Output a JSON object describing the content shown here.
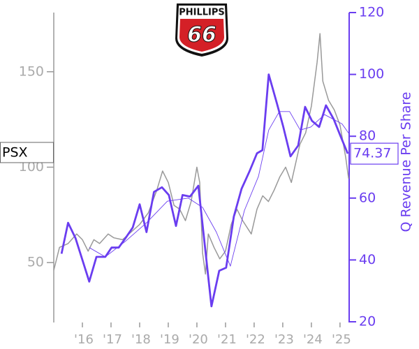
{
  "chart_data": {
    "type": "line",
    "ticker": "PSX",
    "logo": {
      "top": "PHILLIPS",
      "bottom": "66"
    },
    "y2label": "Q Revenue Per Share",
    "xlim": [
      2015,
      2025.32
    ],
    "xticks": [
      {
        "value": 2016,
        "label": "'16"
      },
      {
        "value": 2017,
        "label": "'17"
      },
      {
        "value": 2018,
        "label": "'18"
      },
      {
        "value": 2019,
        "label": "'19"
      },
      {
        "value": 2020,
        "label": "'20"
      },
      {
        "value": 2021,
        "label": "'21"
      },
      {
        "value": 2022,
        "label": "'22"
      },
      {
        "value": 2023,
        "label": "'23"
      },
      {
        "value": 2024,
        "label": "'24"
      },
      {
        "value": 2025,
        "label": "'25"
      }
    ],
    "ylim": [
      19,
      181
    ],
    "yticks": [
      50,
      100,
      150
    ],
    "y2lim": [
      20,
      120
    ],
    "y2ticks": [
      20,
      40,
      60,
      80,
      100,
      120
    ],
    "y2color": "#6a3df0",
    "axiscolor": "#999999",
    "series": [
      {
        "color": "#999999",
        "axis": "y",
        "x": [
          2015.0,
          2015.2,
          2015.5,
          2015.8,
          2016.0,
          2016.2,
          2016.4,
          2016.6,
          2016.9,
          2017.1,
          2017.4,
          2017.7,
          2018.0,
          2018.3,
          2018.6,
          2018.8,
          2019.0,
          2019.2,
          2019.4,
          2019.6,
          2019.8,
          2020.0,
          2020.1,
          2020.2,
          2020.3,
          2020.4,
          2020.6,
          2020.8,
          2021.0,
          2021.2,
          2021.4,
          2021.6,
          2021.9,
          2022.1,
          2022.3,
          2022.5,
          2022.7,
          2022.9,
          2023.1,
          2023.3,
          2023.6,
          2023.8,
          2024.0,
          2024.2,
          2024.3,
          2024.4,
          2024.6,
          2024.8,
          2025.0,
          2025.2,
          2025.3
        ],
        "values": [
          46,
          58,
          60,
          65,
          62,
          56,
          62,
          60,
          65,
          63,
          62,
          66,
          70,
          76,
          88,
          98,
          92,
          80,
          78,
          72,
          82,
          100,
          92,
          55,
          44,
          65,
          58,
          52,
          56,
          70,
          78,
          72,
          65,
          78,
          85,
          82,
          88,
          95,
          100,
          92,
          112,
          118,
          132,
          155,
          170,
          145,
          135,
          130,
          122,
          105,
          94
        ]
      },
      {
        "color": "#6a3df0",
        "axis": "y2",
        "x": [
          2015.27,
          2015.5,
          2015.76,
          2016.24,
          2016.49,
          2016.8,
          2017.02,
          2017.27,
          2017.5,
          2017.76,
          2018.0,
          2018.24,
          2018.5,
          2018.78,
          2019.02,
          2019.27,
          2019.5,
          2019.76,
          2020.05,
          2020.51,
          2020.78,
          2021.02,
          2021.29,
          2021.56,
          2021.83,
          2022.1,
          2022.29,
          2022.51,
          2022.8,
          2023.02,
          2023.27,
          2023.54,
          2023.78,
          2024.02,
          2024.27,
          2024.51,
          2024.78,
          2025.02,
          2025.27
        ],
        "values": [
          42,
          52,
          47,
          33,
          41,
          41,
          44,
          44,
          47,
          50.5,
          58,
          49,
          62,
          63.5,
          61,
          51,
          61,
          60.5,
          64,
          25,
          36.5,
          37.5,
          54,
          63,
          68.5,
          74.5,
          75.5,
          100,
          90.5,
          83,
          73.5,
          77,
          89.5,
          85,
          83,
          90,
          85.5,
          80,
          74.37
        ]
      },
      {
        "color": "#6a3df0",
        "axis": "y2",
        "x": [
          2016.24,
          2016.8,
          2017.5,
          2018.24,
          2018.97,
          2019.7,
          2020.2,
          2020.68,
          2021.17,
          2021.66,
          2022.15,
          2022.51,
          2022.88,
          2023.24,
          2023.61,
          2023.98,
          2024.46,
          2025.07,
          2025.3
        ],
        "values": [
          44,
          41,
          46,
          52,
          59,
          60,
          57,
          49,
          38,
          56,
          67,
          82,
          88,
          88,
          82,
          83,
          87,
          84,
          81
        ]
      }
    ]
  }
}
